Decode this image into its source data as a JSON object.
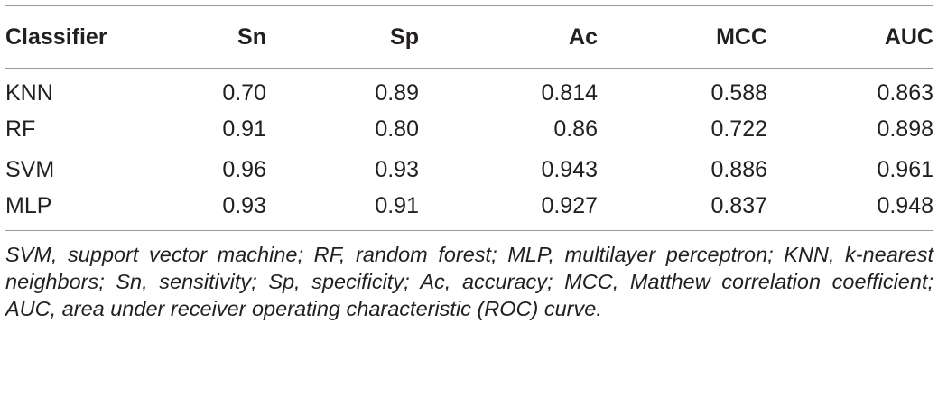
{
  "table": {
    "headers": [
      "Classifier",
      "Sn",
      "Sp",
      "Ac",
      "MCC",
      "AUC"
    ],
    "rows": [
      [
        "KNN",
        "0.70",
        "0.89",
        "0.814",
        "0.588",
        "0.863"
      ],
      [
        "RF",
        "0.91",
        "0.80",
        "0.86",
        "0.722",
        "0.898"
      ],
      [
        "SVM",
        "0.96",
        "0.93",
        "0.943",
        "0.886",
        "0.961"
      ],
      [
        "MLP",
        "0.93",
        "0.91",
        "0.927",
        "0.837",
        "0.948"
      ]
    ]
  },
  "footnote": "SVM, support vector machine; RF, random forest; MLP, multilayer perceptron; KNN, k-nearest neighbors; Sn, sensitivity; Sp, specificity; Ac, accuracy; MCC, Matthew correlation coefficient; AUC, area under receiver operating characteristic (ROC) curve.",
  "colors": {
    "text": "#231f20",
    "rule": "#9a9a9a",
    "background": "#ffffff"
  }
}
